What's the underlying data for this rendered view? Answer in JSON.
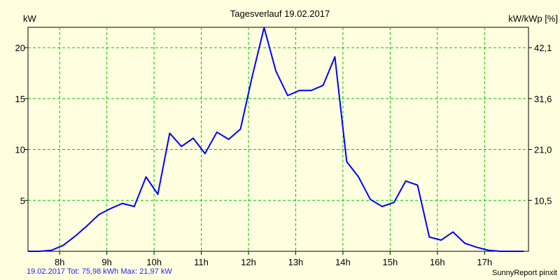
{
  "chart_data": {
    "type": "line",
    "title": "Tagesverlauf 19.02.2017",
    "ylabel": "kW",
    "ylabel_right": "kW/kWp [%]",
    "xlabel": "",
    "x_tick_labels": [
      "8h",
      "9h",
      "10h",
      "11h",
      "12h",
      "13h",
      "14h",
      "15h",
      "16h",
      "17h"
    ],
    "y_ticks": [
      5,
      10,
      15,
      20
    ],
    "y_tick_labels": [
      "5",
      "10",
      "15",
      "20"
    ],
    "y_right_tick_labels": [
      "10,5",
      "21,0",
      "31,6",
      "42,1"
    ],
    "ylim": [
      0,
      22
    ],
    "xlim": [
      7.33,
      17.93
    ],
    "grid": true,
    "line_color": "#0000ff",
    "grid_color": "#00c800",
    "series": [
      {
        "x": [
          7.33,
          7.58,
          7.83,
          8.08,
          8.33,
          8.58,
          8.83,
          9.08,
          9.33,
          9.58,
          9.83,
          10.08,
          10.33,
          10.58,
          10.83,
          11.08,
          11.33,
          11.58,
          11.83,
          12.08,
          12.33,
          12.58,
          12.83,
          13.08,
          13.33,
          13.58,
          13.83,
          14.08,
          14.33,
          14.58,
          14.83,
          15.08,
          15.33,
          15.58,
          15.83,
          16.08,
          16.33,
          16.58,
          16.83,
          17.08,
          17.33,
          17.58,
          17.83
        ],
        "values": [
          0.0,
          0.0,
          0.1,
          0.6,
          1.5,
          2.5,
          3.6,
          4.2,
          4.7,
          4.4,
          7.3,
          5.6,
          11.6,
          10.3,
          11.1,
          9.6,
          11.7,
          11.0,
          12.0,
          17.2,
          21.97,
          17.7,
          15.3,
          15.8,
          15.8,
          16.3,
          19.1,
          8.8,
          7.3,
          5.1,
          4.4,
          4.8,
          6.9,
          6.5,
          1.4,
          1.1,
          1.9,
          0.8,
          0.4,
          0.1,
          0.0,
          0.0,
          0.0
        ]
      }
    ]
  },
  "footer": {
    "summary": "19.02.2017 Tot: 75,98 kWh Max: 21,97 kW",
    "brand": "SunnyReport pinxit"
  }
}
